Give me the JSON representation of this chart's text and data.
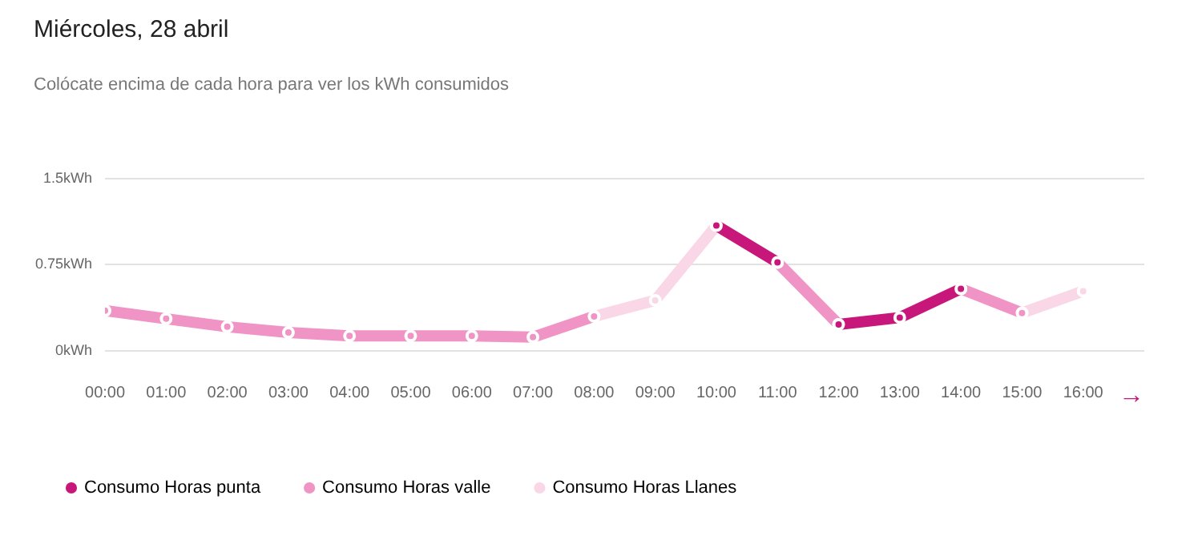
{
  "chart_data": {
    "type": "line",
    "title": "Miércoles, 28 abril",
    "subtitle": "Colócate encima de cada hora para ver los kWh consumidos",
    "series": [
      {
        "name": "Consumo Horas punta",
        "color": "#c8177a",
        "x": [
          10,
          11,
          11.5,
          12,
          13,
          14
        ],
        "values": [
          1.09,
          0.77,
          null,
          0.23,
          0.29,
          0.54
        ]
      },
      {
        "name": "Consumo Horas valle",
        "color": "#ef94c4",
        "x": [
          0,
          1,
          2,
          3,
          4,
          5,
          6,
          7,
          8,
          8.5,
          11,
          12,
          13.5,
          14,
          15
        ],
        "values": [
          0.35,
          0.28,
          0.21,
          0.16,
          0.13,
          0.13,
          0.13,
          0.12,
          0.3,
          null,
          0.77,
          0.23,
          null,
          0.54,
          0.33
        ]
      },
      {
        "name": "Consumo Horas Llanes",
        "color": "#f9d7e6",
        "x": [
          8,
          9,
          10,
          12.5,
          15,
          16
        ],
        "values": [
          0.3,
          0.44,
          1.09,
          null,
          0.33,
          0.52
        ]
      }
    ],
    "xlim": [
      0,
      17
    ],
    "xticks": [
      {
        "value": 0,
        "label": "00:00"
      },
      {
        "value": 1,
        "label": "01:00"
      },
      {
        "value": 2,
        "label": "02:00"
      },
      {
        "value": 3,
        "label": "03:00"
      },
      {
        "value": 4,
        "label": "04:00"
      },
      {
        "value": 5,
        "label": "05:00"
      },
      {
        "value": 6,
        "label": "06:00"
      },
      {
        "value": 7,
        "label": "07:00"
      },
      {
        "value": 8,
        "label": "08:00"
      },
      {
        "value": 9,
        "label": "09:00"
      },
      {
        "value": 10,
        "label": "10:00"
      },
      {
        "value": 11,
        "label": "11:00"
      },
      {
        "value": 12,
        "label": "12:00"
      },
      {
        "value": 13,
        "label": "13:00"
      },
      {
        "value": 14,
        "label": "14:00"
      },
      {
        "value": 15,
        "label": "15:00"
      },
      {
        "value": 16,
        "label": "16:00"
      }
    ],
    "ylim": [
      0,
      1.5
    ],
    "yticks": [
      {
        "value": 0,
        "label": "0kWh"
      },
      {
        "value": 0.75,
        "label": "0.75kWh"
      },
      {
        "value": 1.5,
        "label": "1.5kWh"
      }
    ],
    "grid": "y",
    "legend": "bottom left",
    "marker": "circle",
    "line_style": "solid",
    "annotations": [
      "→"
    ]
  }
}
